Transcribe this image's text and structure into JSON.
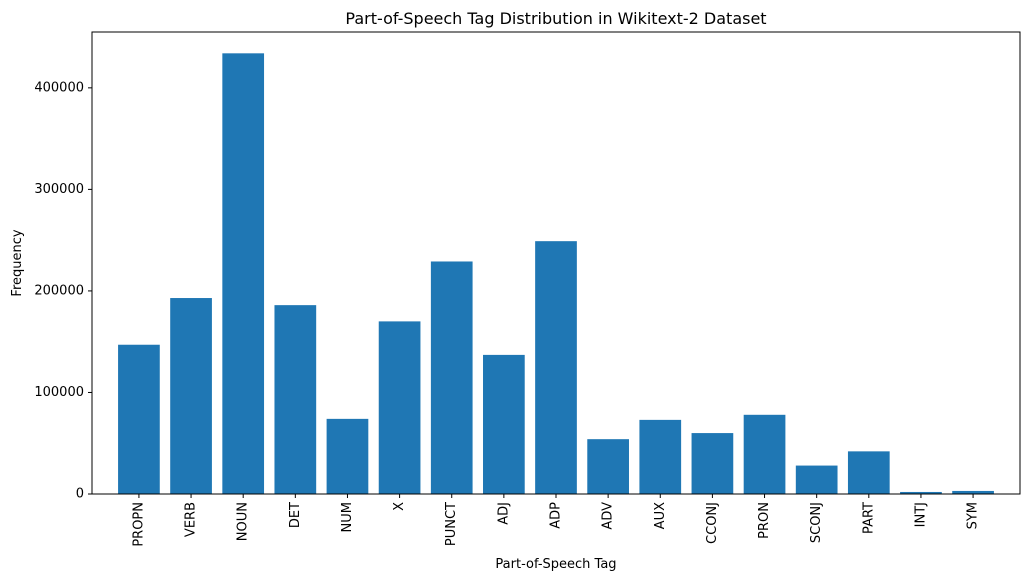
{
  "chart_data": {
    "type": "bar",
    "title": "Part-of-Speech Tag Distribution in Wikitext-2 Dataset",
    "xlabel": "Part-of-Speech Tag",
    "ylabel": "Frequency",
    "categories": [
      "PROPN",
      "VERB",
      "NOUN",
      "DET",
      "NUM",
      "X",
      "PUNCT",
      "ADJ",
      "ADP",
      "ADV",
      "AUX",
      "CCONJ",
      "PRON",
      "SCONJ",
      "PART",
      "INTJ",
      "SYM"
    ],
    "values": [
      147000,
      193000,
      434000,
      186000,
      74000,
      170000,
      229000,
      137000,
      249000,
      54000,
      73000,
      60000,
      78000,
      28000,
      42000,
      2000,
      3000
    ],
    "ylim": [
      0,
      455000
    ],
    "yticks": [
      0,
      100000,
      200000,
      300000,
      400000
    ],
    "ytick_labels": [
      "0",
      "100000",
      "200000",
      "300000",
      "400000"
    ],
    "bar_color": "#1f77b4",
    "grid": false,
    "legend": "none"
  }
}
